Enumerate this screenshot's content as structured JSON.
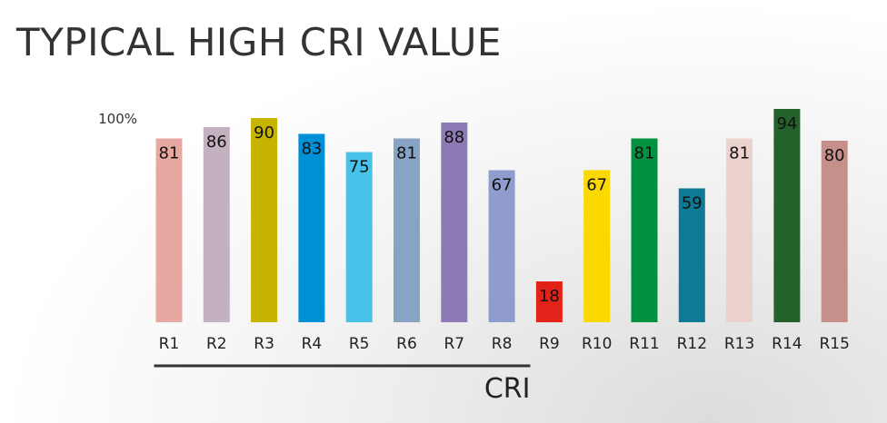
{
  "title": "TYPICAL HIGH CRI VALUE",
  "chart_data": {
    "type": "bar",
    "title": "TYPICAL HIGH CRI VALUE",
    "xlabel": "CRI",
    "ylabel": "",
    "y_max_label": "100%",
    "ylim": [
      0,
      100
    ],
    "grid": false,
    "categories": [
      "R1",
      "R2",
      "R3",
      "R4",
      "R5",
      "R6",
      "R7",
      "R8",
      "R9",
      "R10",
      "R11",
      "R12",
      "R13",
      "R14",
      "R15"
    ],
    "values": [
      81,
      86,
      90,
      83,
      75,
      81,
      88,
      67,
      18,
      67,
      81,
      59,
      81,
      94,
      80
    ],
    "colors": [
      "#e8a8a2",
      "#c3b1bf",
      "#c6b400",
      "#0090d6",
      "#47c2e8",
      "#87a4c4",
      "#8e7ab4",
      "#8f9ccc",
      "#e2231a",
      "#fbd800",
      "#009140",
      "#0e7a96",
      "#ecd2cc",
      "#25622b",
      "#c58f8a"
    ]
  }
}
